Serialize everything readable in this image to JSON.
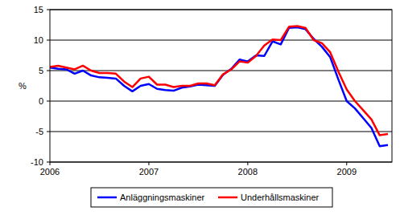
{
  "chart_data": {
    "type": "line",
    "y_label": "%",
    "categories": [
      "2006",
      null,
      null,
      null,
      null,
      null,
      null,
      null,
      null,
      null,
      null,
      null,
      "2007",
      null,
      null,
      null,
      null,
      null,
      null,
      null,
      null,
      null,
      null,
      null,
      "2008",
      null,
      null,
      null,
      null,
      null,
      null,
      null,
      null,
      null,
      null,
      null,
      "2009",
      null,
      null,
      null,
      null,
      null
    ],
    "series": [
      {
        "name": "Anläggningsmaskiner",
        "color": "#0000ff",
        "values": [
          5.5,
          5.3,
          5.2,
          4.5,
          5.0,
          4.2,
          3.9,
          3.8,
          3.7,
          2.5,
          1.6,
          2.5,
          2.8,
          2.0,
          1.8,
          1.7,
          2.2,
          2.4,
          2.7,
          2.6,
          2.5,
          4.3,
          5.3,
          6.8,
          6.5,
          7.5,
          7.4,
          9.8,
          9.3,
          12.0,
          12.1,
          11.8,
          10.2,
          8.9,
          7.2,
          3.5,
          0.0,
          -1.2,
          -2.8,
          -4.4,
          -7.4,
          -7.2
        ]
      },
      {
        "name": "Underhållsmaskiner",
        "color": "#ff0000",
        "values": [
          5.6,
          5.8,
          5.5,
          5.2,
          5.8,
          5.0,
          4.6,
          4.6,
          4.5,
          3.2,
          2.3,
          3.7,
          4.0,
          2.7,
          2.7,
          2.3,
          2.5,
          2.5,
          2.9,
          2.9,
          2.6,
          4.4,
          5.2,
          6.5,
          6.3,
          7.4,
          9.1,
          10.1,
          10.0,
          12.2,
          12.3,
          12.0,
          10.0,
          9.5,
          8.0,
          4.8,
          1.9,
          0.0,
          -1.5,
          -3.0,
          -5.6,
          -5.4
        ]
      }
    ],
    "ylim": [
      -10,
      15
    ],
    "yticks": [
      -10,
      -5,
      0,
      5,
      10,
      15
    ],
    "grid": true,
    "legend": "bottom"
  }
}
